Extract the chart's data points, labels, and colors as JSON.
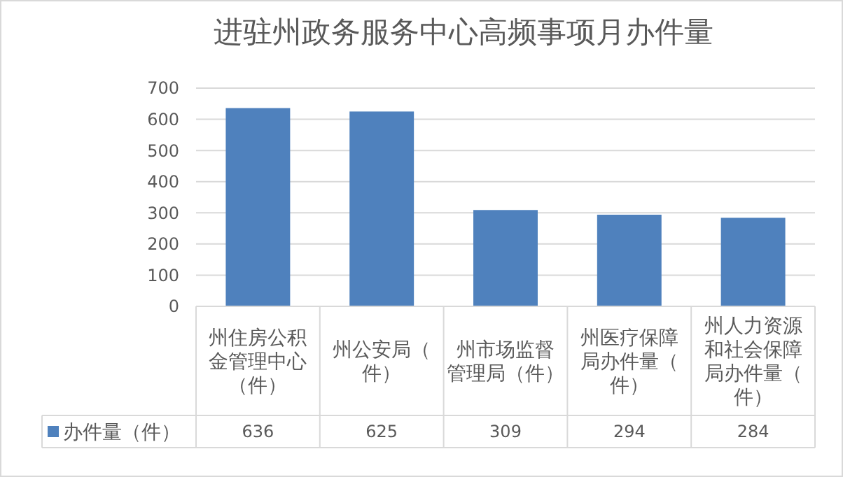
{
  "chart_data": {
    "type": "bar",
    "title": "进驻州政务服务中心高频事项月办件量",
    "categories": [
      "州住房公积金管理中心（件）",
      "州公安局（件）",
      "州市场监督管理局（件）",
      "州医疗保障局办件量（件）",
      "州人力资源和社会保障局办件量（件）"
    ],
    "series": [
      {
        "name": "办件量（件）",
        "color": "#4f81bd",
        "values": [
          636,
          625,
          309,
          294,
          284
        ]
      }
    ],
    "ylim": [
      0,
      700
    ],
    "yticks": [
      0,
      100,
      200,
      300,
      400,
      500,
      600,
      700
    ],
    "grid": "y",
    "legend": "bottom",
    "data_labels": true
  }
}
